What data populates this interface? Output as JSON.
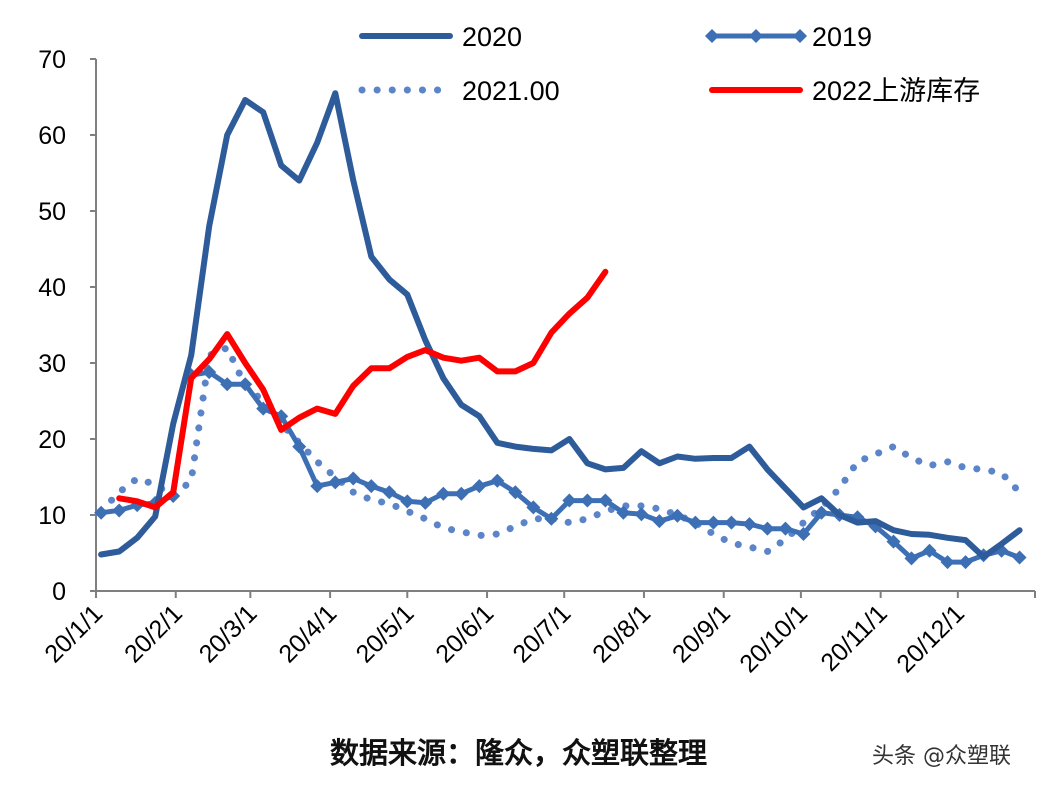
{
  "chart_data": {
    "type": "line",
    "title": "",
    "xlabel": "",
    "ylabel": "",
    "ylim": [
      0,
      70
    ],
    "yticks": [
      "0",
      "10",
      "20",
      "30",
      "40",
      "50",
      "60",
      "70"
    ],
    "xlim": [
      "2020-01-01",
      "2020-12-31"
    ],
    "xticks": [
      {
        "date": "2020-01-01",
        "label": "20/1/1"
      },
      {
        "date": "2020-02-01",
        "label": "20/2/1"
      },
      {
        "date": "2020-03-01",
        "label": "20/3/1"
      },
      {
        "date": "2020-04-01",
        "label": "20/4/1"
      },
      {
        "date": "2020-05-01",
        "label": "20/5/1"
      },
      {
        "date": "2020-06-01",
        "label": "20/6/1"
      },
      {
        "date": "2020-07-01",
        "label": "20/7/1"
      },
      {
        "date": "2020-08-01",
        "label": "20/8/1"
      },
      {
        "date": "2020-09-01",
        "label": "20/9/1"
      },
      {
        "date": "2020-10-01",
        "label": "20/10/1"
      },
      {
        "date": "2020-11-01",
        "label": "20/11/1"
      },
      {
        "date": "2020-12-01",
        "label": "20/12/1"
      }
    ],
    "grid": false,
    "legend_position": "top",
    "x": [
      "2020-01-03",
      "2020-01-10",
      "2020-01-17",
      "2020-01-24",
      "2020-01-31",
      "2020-02-07",
      "2020-02-14",
      "2020-02-21",
      "2020-02-28",
      "2020-03-06",
      "2020-03-13",
      "2020-03-20",
      "2020-03-27",
      "2020-04-03",
      "2020-04-10",
      "2020-04-17",
      "2020-04-24",
      "2020-05-01",
      "2020-05-08",
      "2020-05-15",
      "2020-05-22",
      "2020-05-29",
      "2020-06-05",
      "2020-06-12",
      "2020-06-19",
      "2020-06-26",
      "2020-07-03",
      "2020-07-10",
      "2020-07-17",
      "2020-07-24",
      "2020-07-31",
      "2020-08-07",
      "2020-08-14",
      "2020-08-21",
      "2020-08-28",
      "2020-09-04",
      "2020-09-11",
      "2020-09-18",
      "2020-09-25",
      "2020-10-02",
      "2020-10-09",
      "2020-10-16",
      "2020-10-23",
      "2020-10-30",
      "2020-11-06",
      "2020-11-13",
      "2020-11-20",
      "2020-11-27",
      "2020-12-04",
      "2020-12-11",
      "2020-12-18",
      "2020-12-25"
    ],
    "series": [
      {
        "name": "2020",
        "style": "solid-thick",
        "color": "#2e5c9a",
        "values": [
          4.8,
          5.2,
          7,
          9.8,
          22,
          31,
          48,
          60,
          64.6,
          63,
          56,
          54,
          59,
          65.5,
          54,
          44,
          41,
          39,
          33,
          28,
          24.5,
          23,
          19.5,
          19,
          18.7,
          18.5,
          20,
          16.8,
          16,
          16.2,
          18.4,
          16.8,
          17.7,
          17.4,
          17.5,
          17.5,
          19,
          16,
          13.5,
          11,
          12.2,
          10,
          9,
          9.2,
          8,
          7.5,
          7.4,
          7,
          6.7,
          4.5,
          6.2,
          8
        ]
      },
      {
        "name": "2019",
        "style": "diamond-line",
        "color": "#3d6fb5",
        "values": [
          10.3,
          10.6,
          11.3,
          11.6,
          12.5,
          28.4,
          28.8,
          27.2,
          27.2,
          24,
          23,
          19,
          13.8,
          14.3,
          14.8,
          13.8,
          13,
          11.8,
          11.6,
          12.8,
          12.8,
          13.8,
          14.5,
          13,
          11,
          9.5,
          11.9,
          11.9,
          11.9,
          10.3,
          10.1,
          9.2,
          9.9,
          9,
          9,
          9,
          8.8,
          8.2,
          8.2,
          7.5,
          10.3,
          10,
          9.7,
          8.5,
          6.5,
          4.3,
          5.3,
          3.8,
          3.8,
          4.7,
          5.3,
          4.4
        ]
      },
      {
        "name": "2021.00",
        "style": "dotted",
        "color": "#5b84c9",
        "values": [
          10.5,
          13,
          14.8,
          14,
          12.5,
          14.5,
          31,
          32,
          27,
          25,
          22,
          19.5,
          17,
          15,
          13,
          12,
          11.5,
          10.5,
          9.5,
          8.3,
          7.8,
          7.3,
          7.5,
          8.5,
          9.5,
          9.5,
          9,
          9.5,
          10.5,
          11.2,
          11.2,
          10.8,
          10,
          9,
          7.5,
          6.3,
          5.8,
          5.2,
          6.8,
          9,
          11,
          13.5,
          17,
          18,
          19,
          17.5,
          16.5,
          17,
          16.2,
          16,
          15.5,
          13
        ]
      },
      {
        "name": "2022上游库存",
        "style": "solid-thick",
        "color": "#ff0000",
        "values": [
          null,
          12.2,
          11.8,
          11,
          13,
          28,
          30.5,
          33.8,
          30,
          26.5,
          21.2,
          22.8,
          24,
          23.3,
          27,
          29.3,
          29.3,
          30.8,
          31.7,
          30.7,
          30.3,
          30.7,
          28.9,
          28.9,
          30,
          34,
          36.5,
          38.6,
          42,
          null,
          null,
          null,
          null,
          null,
          null,
          null,
          null,
          null,
          null,
          null,
          null,
          null,
          null,
          null,
          null,
          null,
          null,
          null,
          null,
          null,
          null,
          null
        ]
      }
    ]
  },
  "footer": {
    "source": "数据来源：隆众，众塑联整理",
    "watermark": "头条 @众塑联"
  }
}
